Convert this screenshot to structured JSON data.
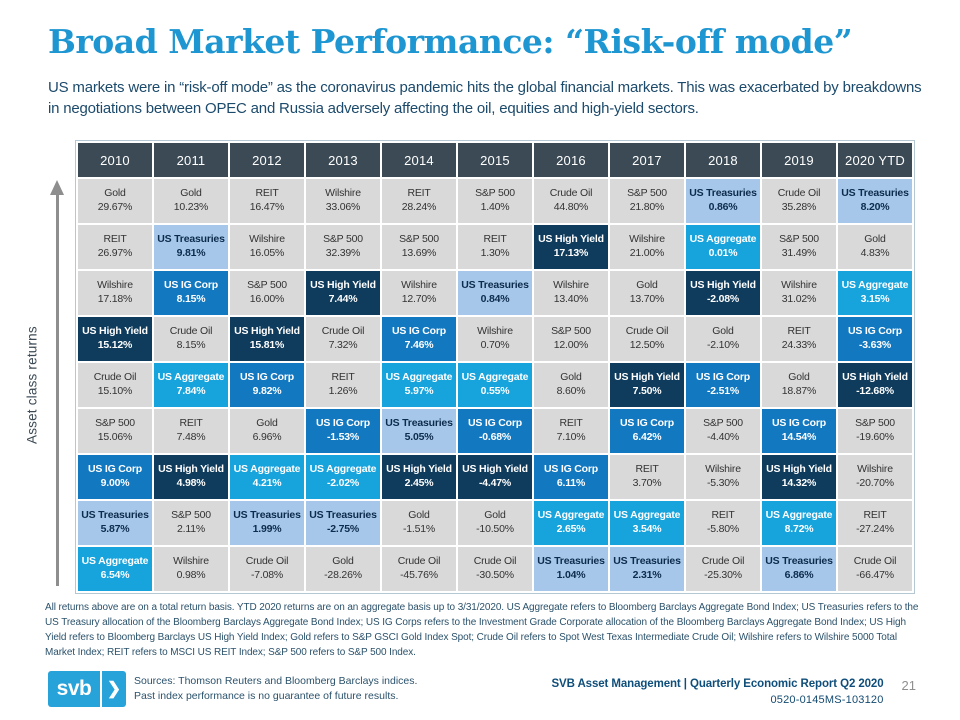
{
  "header": {
    "title": "Broad Market Performance: “Risk-off mode”",
    "subtitle": "US markets were in “risk-off mode” as the coronavirus pandemic hits the global financial markets. This was exacerbated by breakdowns in negotiations between OPEC and Russia adversely affecting the oil, equities and high-yield sectors."
  },
  "axis": {
    "label": "Asset class returns"
  },
  "chart_data": {
    "type": "table",
    "title": "Asset class total returns by year (quilt chart)",
    "columns": [
      "2010",
      "2011",
      "2012",
      "2013",
      "2014",
      "2015",
      "2016",
      "2017",
      "2018",
      "2019",
      "2020 YTD"
    ],
    "rows_note": "Each column lists assets top-to-bottom as shown",
    "columns_data": [
      {
        "year": "2010",
        "cells": [
          [
            "Gold",
            "29.67%"
          ],
          [
            "REIT",
            "26.97%"
          ],
          [
            "Wilshire",
            "17.18%"
          ],
          [
            "US High Yield",
            "15.12%"
          ],
          [
            "Crude Oil",
            "15.10%"
          ],
          [
            "S&P 500",
            "15.06%"
          ],
          [
            "US IG Corp",
            "9.00%"
          ],
          [
            "US Treasuries",
            "5.87%"
          ],
          [
            "US Aggregate",
            "6.54%"
          ]
        ]
      },
      {
        "year": "2011",
        "cells": [
          [
            "Gold",
            "10.23%"
          ],
          [
            "US Treasuries",
            "9.81%"
          ],
          [
            "US IG Corp",
            "8.15%"
          ],
          [
            "Crude Oil",
            "8.15%"
          ],
          [
            "US Aggregate",
            "7.84%"
          ],
          [
            "REIT",
            "7.48%"
          ],
          [
            "US High Yield",
            "4.98%"
          ],
          [
            "S&P 500",
            "2.11%"
          ],
          [
            "Wilshire",
            "0.98%"
          ]
        ]
      },
      {
        "year": "2012",
        "cells": [
          [
            "REIT",
            "16.47%"
          ],
          [
            "Wilshire",
            "16.05%"
          ],
          [
            "S&P 500",
            "16.00%"
          ],
          [
            "US High Yield",
            "15.81%"
          ],
          [
            "US IG Corp",
            "9.82%"
          ],
          [
            "Gold",
            "6.96%"
          ],
          [
            "US Aggregate",
            "4.21%"
          ],
          [
            "US Treasuries",
            "1.99%"
          ],
          [
            "Crude Oil",
            "-7.08%"
          ]
        ]
      },
      {
        "year": "2013",
        "cells": [
          [
            "Wilshire",
            "33.06%"
          ],
          [
            "S&P 500",
            "32.39%"
          ],
          [
            "US High Yield",
            "7.44%"
          ],
          [
            "Crude Oil",
            "7.32%"
          ],
          [
            "REIT",
            "1.26%"
          ],
          [
            "US IG Corp",
            "-1.53%"
          ],
          [
            "US Aggregate",
            "-2.02%"
          ],
          [
            "US Treasuries",
            "-2.75%"
          ],
          [
            "Gold",
            "-28.26%"
          ]
        ]
      },
      {
        "year": "2014",
        "cells": [
          [
            "REIT",
            "28.24%"
          ],
          [
            "S&P 500",
            "13.69%"
          ],
          [
            "Wilshire",
            "12.70%"
          ],
          [
            "US IG Corp",
            "7.46%"
          ],
          [
            "US Aggregate",
            "5.97%"
          ],
          [
            "US Treasuries",
            "5.05%"
          ],
          [
            "US High Yield",
            "2.45%"
          ],
          [
            "Gold",
            "-1.51%"
          ],
          [
            "Crude Oil",
            "-45.76%"
          ]
        ]
      },
      {
        "year": "2015",
        "cells": [
          [
            "S&P 500",
            "1.40%"
          ],
          [
            "REIT",
            "1.30%"
          ],
          [
            "US Treasuries",
            "0.84%"
          ],
          [
            "Wilshire",
            "0.70%"
          ],
          [
            "US Aggregate",
            "0.55%"
          ],
          [
            "US IG Corp",
            "-0.68%"
          ],
          [
            "US High Yield",
            "-4.47%"
          ],
          [
            "Gold",
            "-10.50%"
          ],
          [
            "Crude Oil",
            "-30.50%"
          ]
        ]
      },
      {
        "year": "2016",
        "cells": [
          [
            "Crude Oil",
            "44.80%"
          ],
          [
            "US High Yield",
            "17.13%"
          ],
          [
            "Wilshire",
            "13.40%"
          ],
          [
            "S&P 500",
            "12.00%"
          ],
          [
            "Gold",
            "8.60%"
          ],
          [
            "REIT",
            "7.10%"
          ],
          [
            "US IG Corp",
            "6.11%"
          ],
          [
            "US Aggregate",
            "2.65%"
          ],
          [
            "US Treasuries",
            "1.04%"
          ]
        ]
      },
      {
        "year": "2017",
        "cells": [
          [
            "S&P 500",
            "21.80%"
          ],
          [
            "Wilshire",
            "21.00%"
          ],
          [
            "Gold",
            "13.70%"
          ],
          [
            "Crude Oil",
            "12.50%"
          ],
          [
            "US High Yield",
            "7.50%"
          ],
          [
            "US IG Corp",
            "6.42%"
          ],
          [
            "REIT",
            "3.70%"
          ],
          [
            "US Aggregate",
            "3.54%"
          ],
          [
            "US Treasuries",
            "2.31%"
          ]
        ]
      },
      {
        "year": "2018",
        "cells": [
          [
            "US Treasuries",
            "0.86%"
          ],
          [
            "US Aggregate",
            "0.01%"
          ],
          [
            "US High Yield",
            "-2.08%"
          ],
          [
            "Gold",
            "-2.10%"
          ],
          [
            "US IG Corp",
            "-2.51%"
          ],
          [
            "S&P 500",
            "-4.40%"
          ],
          [
            "Wilshire",
            "-5.30%"
          ],
          [
            "REIT",
            "-5.80%"
          ],
          [
            "Crude Oil",
            "-25.30%"
          ]
        ]
      },
      {
        "year": "2019",
        "cells": [
          [
            "Crude Oil",
            "35.28%"
          ],
          [
            "S&P 500",
            "31.49%"
          ],
          [
            "Wilshire",
            "31.02%"
          ],
          [
            "REIT",
            "24.33%"
          ],
          [
            "Gold",
            "18.87%"
          ],
          [
            "US IG Corp",
            "14.54%"
          ],
          [
            "US High Yield",
            "14.32%"
          ],
          [
            "US Aggregate",
            "8.72%"
          ],
          [
            "US Treasuries",
            "6.86%"
          ]
        ]
      },
      {
        "year": "2020 YTD",
        "cells": [
          [
            "US Treasuries",
            "8.20%"
          ],
          [
            "Gold",
            "4.83%"
          ],
          [
            "US Aggregate",
            "3.15%"
          ],
          [
            "US IG Corp",
            "-3.63%"
          ],
          [
            "US High Yield",
            "-12.68%"
          ],
          [
            "S&P 500",
            "-19.60%"
          ],
          [
            "Wilshire",
            "-20.70%"
          ],
          [
            "REIT",
            "-27.24%"
          ],
          [
            "Crude Oil",
            "-66.47%"
          ]
        ]
      }
    ],
    "asset_styles": {
      "US Treasuries": {
        "bg": "#a6c7e9",
        "fg": "#0d2b4d",
        "bold": true
      },
      "US IG Corp": {
        "bg": "#1278c0",
        "fg": "#ffffff",
        "bold": true
      },
      "US Aggregate": {
        "bg": "#17a3dc",
        "fg": "#ffffff",
        "bold": true
      },
      "US High Yield": {
        "bg": "#0f3b5c",
        "fg": "#ffffff",
        "bold": true
      },
      "default": {
        "bg": "#d9d9d9",
        "fg": "#333333",
        "bold": false
      }
    },
    "header_style": {
      "bg": "#3b4a55",
      "fg": "#ffffff"
    },
    "y_axis_label": "Asset class returns",
    "legend_position": "none",
    "grid": false
  },
  "footnote": {
    "text": "All returns above are on a total return basis. YTD 2020 returns are on an aggregate basis up to 3/31/2020. US Aggregate refers to Bloomberg Barclays Aggregate Bond Index; US Treasuries refers to the US Treasury allocation of the Bloomberg Barclays Aggregate Bond Index; US IG Corps refers to the Investment Grade Corporate allocation of the Bloomberg Barclays Aggregate Bond Index; US High Yield refers to Bloomberg Barclays US High Yield Index; Gold refers to S&P GSCI Gold Index Spot; Crude Oil refers to Spot West Texas Intermediate Crude Oil; Wilshire refers to Wilshire 5000 Total Market Index; REIT refers to MSCI US REIT Index; S&P 500 refers to S&P 500 Index."
  },
  "footer": {
    "logo_text": "svb",
    "logo_chevron": "❯",
    "sources_line1": "Sources: Thomson Reuters and Bloomberg Barclays indices.",
    "sources_line2": "Past index performance is no guarantee of future results.",
    "report_line": "SVB Asset Management | Quarterly Economic Report Q2 2020",
    "page_number": "21",
    "doc_code": "0520-0145MS-103120"
  },
  "colors": {
    "title_blue": "#1e96d2",
    "subtitle_navy": "#1c4a6b",
    "header_slate": "#3b4a55",
    "brand_logo_blue": "#27a3da",
    "footer_navy": "#0f4e7a"
  }
}
